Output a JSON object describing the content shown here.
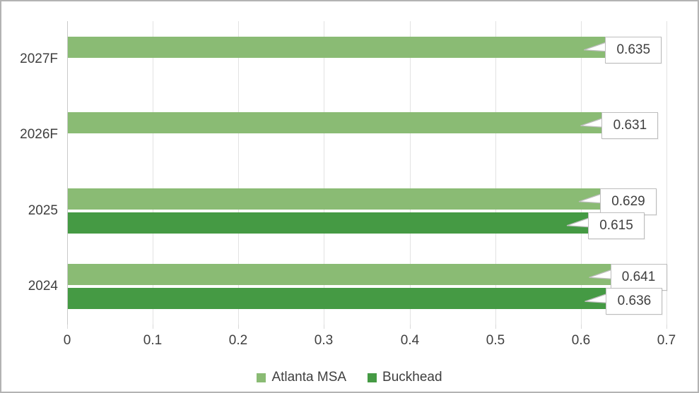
{
  "chart_data": {
    "type": "bar",
    "orientation": "horizontal",
    "title": "",
    "xlabel": "",
    "ylabel": "",
    "categories": [
      "2027F",
      "2026F",
      "2025",
      "2024"
    ],
    "series": [
      {
        "name": "Atlanta MSA",
        "color": "#8abb74",
        "values": [
          0.635,
          0.631,
          0.629,
          0.641
        ]
      },
      {
        "name": "Buckhead",
        "color": "#459a44",
        "values": [
          null,
          null,
          0.615,
          0.636
        ]
      }
    ],
    "data_labels": {
      "style": "callout",
      "decimals": 3,
      "values": [
        {
          "category": "2027F",
          "series": "Atlanta MSA",
          "label": "0.635"
        },
        {
          "category": "2026F",
          "series": "Atlanta MSA",
          "label": "0.631"
        },
        {
          "category": "2025",
          "series": "Atlanta MSA",
          "label": "0.629"
        },
        {
          "category": "2025",
          "series": "Buckhead",
          "label": "0.615"
        },
        {
          "category": "2024",
          "series": "Atlanta MSA",
          "label": "0.641"
        },
        {
          "category": "2024",
          "series": "Buckhead",
          "label": "0.636"
        }
      ]
    },
    "xlim": [
      0,
      0.7
    ],
    "x_tick_labels": [
      "0",
      "0.1",
      "0.2",
      "0.3",
      "0.4",
      "0.5",
      "0.6",
      "0.7"
    ],
    "grid": true,
    "legend_position": "bottom",
    "colors": {
      "gridline": "#e2e2e2",
      "axis_line": "#c9c9c9",
      "text": "#3f3f3f",
      "callout_border": "#bdbdbd",
      "callout_fill": "#ffffff"
    }
  }
}
